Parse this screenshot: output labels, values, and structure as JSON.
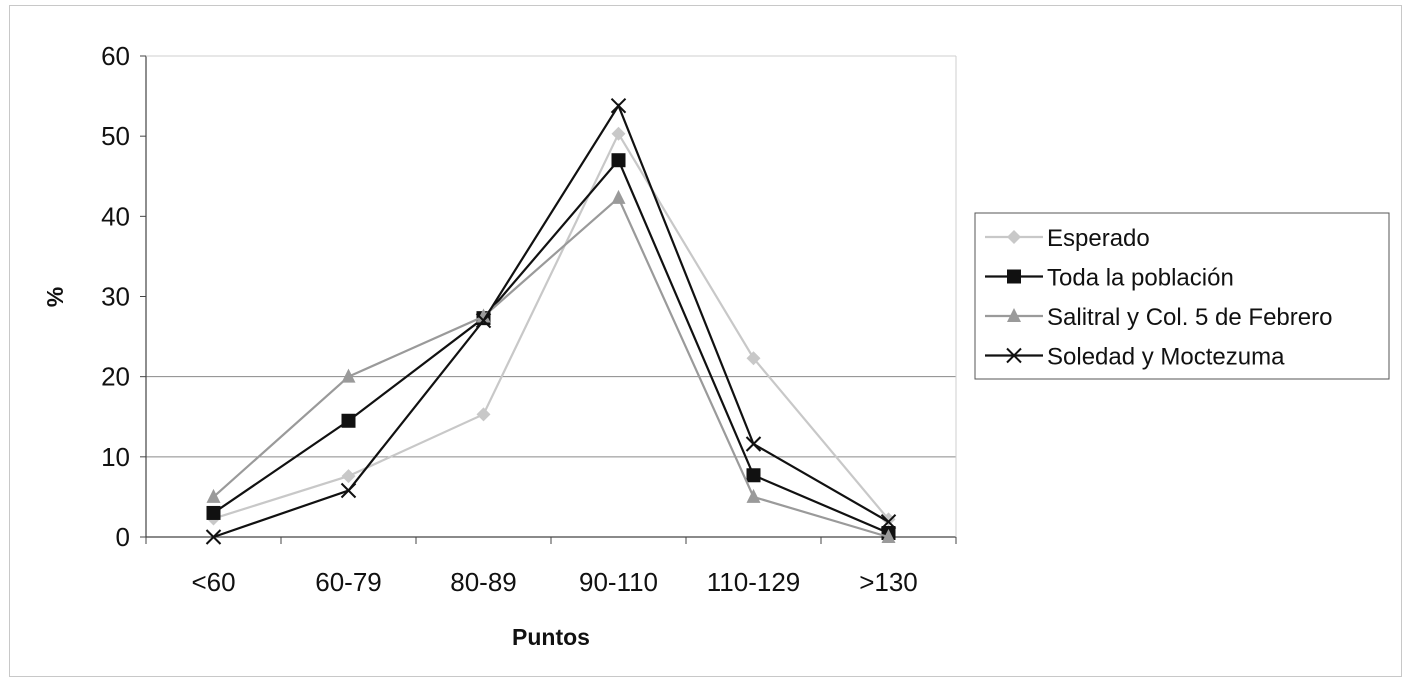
{
  "chart_data": {
    "type": "line",
    "title": "",
    "xlabel": "Puntos",
    "ylabel": "%",
    "categories": [
      "<60",
      "60-79",
      "80-89",
      "90-110",
      "110-129",
      ">130"
    ],
    "ylim": [
      0,
      60
    ],
    "yticks": [
      "0",
      "10",
      "20",
      "30",
      "40",
      "50",
      "60"
    ],
    "grid": "horizontal at 10 and 20 only",
    "legend_position": "right",
    "series": [
      {
        "name": "Esperado",
        "values": [
          2.3,
          7.6,
          15.3,
          50.3,
          22.3,
          2.2
        ],
        "color": "#c8c8c8",
        "marker": "diamond"
      },
      {
        "name": "Toda la población",
        "values": [
          3.0,
          14.5,
          27.3,
          47.0,
          7.7,
          0.5
        ],
        "color": "#111111",
        "marker": "square"
      },
      {
        "name": "Salitral y Col. 5 de Febrero",
        "values": [
          5.0,
          20.0,
          27.5,
          42.3,
          5.0,
          0.0
        ],
        "color": "#9a9a9a",
        "marker": "triangle"
      },
      {
        "name": "Soledad y Moctezuma",
        "values": [
          0.0,
          5.8,
          27.0,
          53.8,
          11.6,
          1.9
        ],
        "color": "#111111",
        "marker": "x"
      }
    ]
  }
}
